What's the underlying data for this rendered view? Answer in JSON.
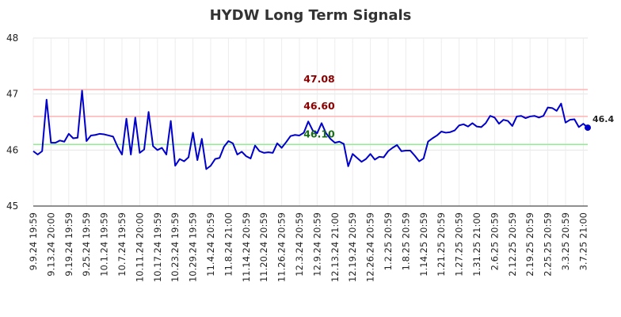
{
  "chart_data": {
    "type": "line",
    "title": "HYDW Long Term Signals",
    "ylim": [
      45,
      48
    ],
    "yticks": [
      "45",
      "46",
      "47",
      "48"
    ],
    "grid": true,
    "x_tick_labels": [
      "9.9.24 19:59",
      "9.13.24 20:00",
      "9.19.24 19:59",
      "9.25.24 19:59",
      "10.1.24 19:59",
      "10.7.24 19:59",
      "10.11.24 20:00",
      "10.17.24 19:59",
      "10.23.24 19:59",
      "10.29.24 19:59",
      "11.4.24 20:59",
      "11.8.24 21:00",
      "11.14.24 20:59",
      "11.20.24 20:59",
      "11.26.24 20:59",
      "12.3.24 20:59",
      "12.9.24 20:59",
      "12.13.24 21:00",
      "12.19.24 20:59",
      "12.26.24 20:59",
      "1.2.25 20:59",
      "1.8.25 20:59",
      "1.14.25 20:59",
      "1.21.25 20:59",
      "1.27.25 20:59",
      "1.31.25 21:00",
      "2.6.25 20:59",
      "2.12.25 20:59",
      "2.19.25 20:59",
      "2.25.25 20:59",
      "3.3.25 20:59",
      "3.7.25 21:00"
    ],
    "reference_lines": [
      {
        "value": 47.08,
        "label": "47.08",
        "color": "#ffb3b3",
        "label_color": "#8b0000"
      },
      {
        "value": 46.6,
        "label": "46.60",
        "color": "#ffb3b3",
        "label_color": "#8b0000"
      },
      {
        "value": 46.1,
        "label": "46.10",
        "color": "#90ee90",
        "label_color": "#1a6b1a"
      }
    ],
    "series": [
      {
        "color": "#0000cc",
        "last_label": "46.4",
        "values": [
          45.98,
          45.92,
          45.98,
          46.9,
          46.13,
          46.13,
          46.17,
          46.15,
          46.29,
          46.21,
          46.22,
          47.06,
          46.16,
          46.26,
          46.27,
          46.29,
          46.28,
          46.26,
          46.24,
          46.06,
          45.92,
          46.56,
          45.92,
          46.58,
          45.95,
          46.01,
          46.68,
          46.07,
          46.0,
          46.04,
          45.92,
          46.52,
          45.72,
          45.84,
          45.8,
          45.87,
          46.31,
          45.82,
          46.2,
          45.66,
          45.72,
          45.84,
          45.86,
          46.06,
          46.16,
          46.12,
          45.92,
          45.97,
          45.89,
          45.85,
          46.08,
          45.98,
          45.95,
          45.96,
          45.95,
          46.12,
          46.04,
          46.14,
          46.25,
          46.27,
          46.26,
          46.31,
          46.51,
          46.35,
          46.3,
          46.48,
          46.3,
          46.2,
          46.13,
          46.15,
          46.11,
          45.71,
          45.93,
          45.86,
          45.79,
          45.84,
          45.93,
          45.83,
          45.88,
          45.87,
          45.98,
          46.04,
          46.09,
          45.98,
          45.99,
          45.99,
          45.9,
          45.8,
          45.85,
          46.15,
          46.21,
          46.26,
          46.33,
          46.31,
          46.32,
          46.35,
          46.44,
          46.46,
          46.42,
          46.48,
          46.42,
          46.41,
          46.48,
          46.61,
          46.58,
          46.47,
          46.54,
          46.52,
          46.43,
          46.6,
          46.61,
          46.57,
          46.6,
          46.61,
          46.58,
          46.61,
          46.76,
          46.75,
          46.7,
          46.83,
          46.49,
          46.54,
          46.55,
          46.41,
          46.47,
          46.4
        ]
      }
    ]
  }
}
